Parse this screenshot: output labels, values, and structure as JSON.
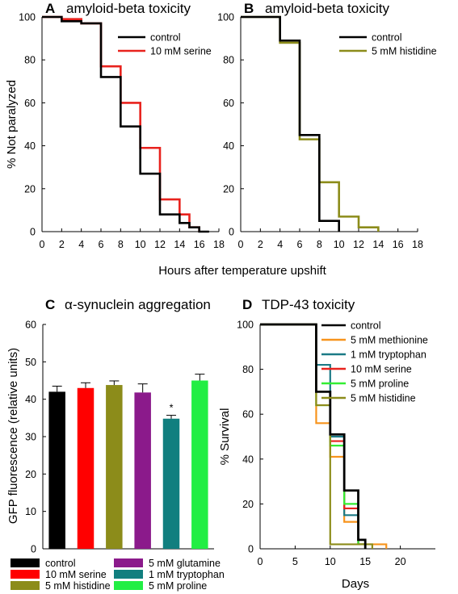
{
  "shared": {
    "xlabel_ab": "Hours after temperature upshift"
  },
  "chart_data": [
    {
      "panel": "A",
      "title": "amyloid-beta toxicity",
      "type": "line",
      "step": true,
      "xlabel": "Hours after temperature upshift",
      "ylabel": "% Not paralyzed",
      "xlim": [
        0,
        18
      ],
      "ylim": [
        0,
        100
      ],
      "xticks": [
        0,
        2,
        4,
        6,
        8,
        10,
        12,
        14,
        16,
        18
      ],
      "yticks": [
        0,
        20,
        40,
        60,
        80,
        100
      ],
      "legend_position": "top-right",
      "series": [
        {
          "name": "10 mM serine",
          "color": "#e8221d",
          "x": [
            0,
            2,
            3,
            4,
            6,
            7,
            8,
            9,
            10,
            11,
            12,
            13,
            14,
            15,
            16
          ],
          "y": [
            100,
            99,
            99,
            97,
            77,
            77,
            60,
            60,
            39,
            39,
            15,
            15,
            8,
            2,
            0
          ]
        },
        {
          "name": "control",
          "color": "#000000",
          "x": [
            0,
            2,
            4,
            6,
            8,
            10,
            12,
            14,
            15,
            16,
            17
          ],
          "y": [
            100,
            98,
            97,
            72,
            49,
            27,
            8,
            4,
            2,
            0,
            0
          ]
        }
      ]
    },
    {
      "panel": "B",
      "title": "amyloid-beta toxicity",
      "type": "line",
      "step": true,
      "xlim": [
        0,
        18
      ],
      "ylim": [
        0,
        100
      ],
      "xticks": [
        0,
        2,
        4,
        6,
        8,
        10,
        12,
        14,
        16,
        18
      ],
      "yticks": [
        0,
        20,
        40,
        60,
        80,
        100
      ],
      "legend_position": "top-right",
      "series": [
        {
          "name": "5 mM histidine",
          "color": "#8c8c1a",
          "x": [
            0,
            4,
            6,
            8,
            10,
            12,
            14
          ],
          "y": [
            100,
            88,
            43,
            23,
            7,
            2,
            0
          ]
        },
        {
          "name": "control",
          "color": "#000000",
          "x": [
            0,
            4,
            6,
            8,
            10
          ],
          "y": [
            100,
            89,
            45,
            5,
            0
          ]
        }
      ]
    },
    {
      "panel": "C",
      "title": "α-synuclein aggregation",
      "type": "bar",
      "ylabel": "GFP fluorescence (relative units)",
      "ylim": [
        0,
        60
      ],
      "yticks": [
        0,
        10,
        20,
        30,
        40,
        50,
        60
      ],
      "categories": [
        "control",
        "10 mM serine",
        "5 mM histidine",
        "5 mM glutamine",
        "1 mM tryptophan",
        "5 mM proline"
      ],
      "values": [
        42,
        43,
        43.8,
        41.8,
        34.8,
        45
      ],
      "errors": [
        1.5,
        1.4,
        1.1,
        2.3,
        0.9,
        1.7
      ],
      "colors": [
        "#000000",
        "#ff0000",
        "#8c8c1a",
        "#8b1a8b",
        "#117f7f",
        "#22ee44"
      ],
      "annotations": [
        {
          "category": "1 mM tryptophan",
          "text": "*"
        }
      ],
      "legend_position": "bottom"
    },
    {
      "panel": "D",
      "title": "TDP-43 toxicity",
      "type": "line",
      "step": true,
      "xlabel": "Days",
      "ylabel": "% Survival",
      "xlim": [
        0,
        25
      ],
      "ylim": [
        0,
        100
      ],
      "xticks": [
        0,
        5,
        10,
        15,
        20
      ],
      "yticks": [
        0,
        20,
        40,
        60,
        80,
        100
      ],
      "legend_position": "top-right",
      "series": [
        {
          "name": "5 mM methionine",
          "color": "#f7941d",
          "x": [
            0,
            8,
            10,
            12,
            14,
            18
          ],
          "y": [
            100,
            56,
            41,
            12,
            2,
            0
          ]
        },
        {
          "name": "1 mM tryptophan",
          "color": "#1b7a86",
          "x": [
            0,
            8,
            10,
            12,
            14,
            15
          ],
          "y": [
            100,
            82,
            50,
            15,
            2,
            0
          ]
        },
        {
          "name": "10 mM serine",
          "color": "#e8221d",
          "x": [
            0,
            8,
            10,
            12,
            14,
            15
          ],
          "y": [
            100,
            70,
            48,
            18,
            2,
            0
          ]
        },
        {
          "name": "5 mM proline",
          "color": "#33ee33",
          "x": [
            0,
            8,
            10,
            12,
            14,
            15
          ],
          "y": [
            100,
            64,
            46,
            20,
            2,
            0
          ]
        },
        {
          "name": "5 mM histidine",
          "color": "#8c8c1a",
          "x": [
            0,
            8,
            10,
            16
          ],
          "y": [
            100,
            64,
            2,
            0
          ]
        },
        {
          "name": "control",
          "color": "#000000",
          "x": [
            0,
            8,
            10,
            12,
            14,
            15
          ],
          "y": [
            100,
            70,
            51,
            26,
            4,
            0
          ]
        }
      ]
    }
  ]
}
